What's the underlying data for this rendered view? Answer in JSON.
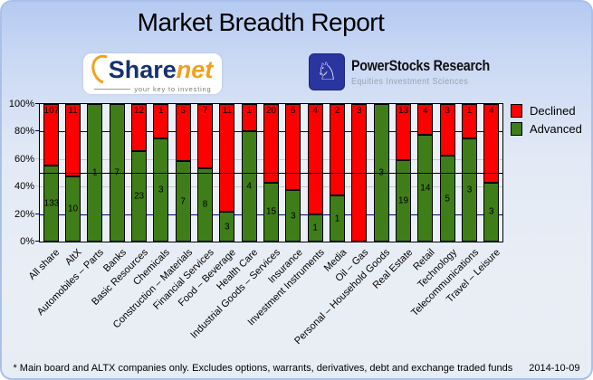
{
  "title": "Market Breadth Report",
  "logos": {
    "sharenet": {
      "name_part1": "Share",
      "name_part2": "net",
      "tagline": "your key to investing"
    },
    "powerstocks": {
      "name": "PowerStocks  Research",
      "tagline": "Equities Investment Sciences",
      "knight_icon": "chess-knight-icon",
      "knight_glyph": "♘",
      "square_color": "#2a35a0"
    }
  },
  "chart_data": {
    "type": "bar",
    "stacked": true,
    "normalized_to_percent": true,
    "categories": [
      "All share",
      "AltX",
      "Automobiles – Parts",
      "Banks",
      "Basic Resources",
      "Chemicals",
      "Construction – Materials",
      "Financial Services",
      "Food – Beverage",
      "Health Care",
      "Industrial Goods – Services",
      "Insurance",
      "Investment Instruments",
      "Media",
      "Oil – Gas",
      "Personal – Household Goods",
      "Real Estate",
      "Retail",
      "Technology",
      "Telecommunications",
      "Travel – Leisure"
    ],
    "series": [
      {
        "name": "Declined",
        "color": "#fd0000",
        "values": [
          107,
          11,
          0,
          0,
          12,
          1,
          5,
          7,
          11,
          1,
          20,
          5,
          4,
          2,
          3,
          0,
          13,
          4,
          3,
          1,
          4
        ]
      },
      {
        "name": "Advanced",
        "color": "#3f7d19",
        "values": [
          133,
          10,
          1,
          7,
          23,
          3,
          7,
          8,
          3,
          4,
          15,
          3,
          1,
          1,
          0,
          3,
          19,
          14,
          5,
          3,
          3
        ]
      }
    ],
    "y_axis": {
      "ticks": [
        "0%",
        "20%",
        "40%",
        "60%",
        "80%",
        "100%"
      ],
      "min": 0,
      "max": 100
    },
    "gridlines": [
      {
        "pct": 80,
        "color": "#000080"
      },
      {
        "pct": 60,
        "color": "#c8c8c8"
      },
      {
        "pct": 40,
        "color": "#c8c8c8"
      },
      {
        "pct": 20,
        "color": "#000080"
      }
    ],
    "reference_line": {
      "value": 50,
      "color": "#000000"
    },
    "legend": [
      "Declined",
      "Advanced"
    ],
    "legend_position": "top-right",
    "bar_value_labels": "raw counts shown on segments"
  },
  "footer": {
    "note": "* Main board and ALTX companies only. Excludes options, warrants, derivatives, debt and exchange traded funds",
    "date": "2014-10-09"
  }
}
